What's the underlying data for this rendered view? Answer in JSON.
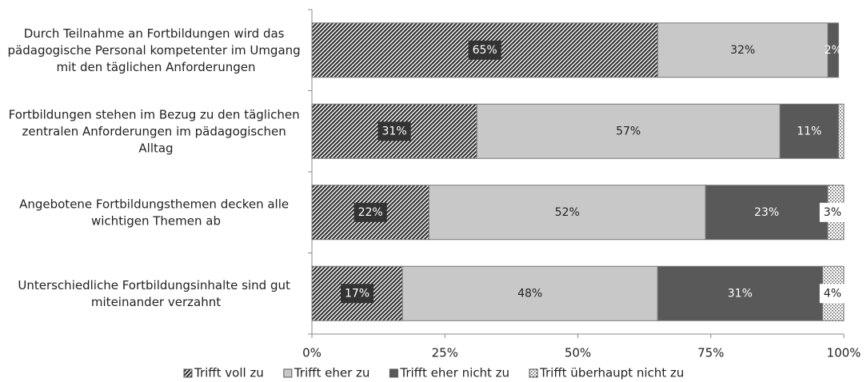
{
  "chart_data": {
    "type": "stacked_barh",
    "categories": [
      "Durch Teilnahme an Fortbildungen wird das pädagogische Personal kompetenter im Umgang mit den täglichen Anforderungen",
      "Fortbildungen stehen im Bezug zu den täglichen zentralen Anforderungen im pädagogischen Alltag",
      "Angebotene Fortbildungsthemen decken alle wichtigen Themen ab",
      "Unterschiedliche Fortbildungsinhalte sind gut miteinander verzahnt"
    ],
    "series": [
      {
        "name": "Trifft voll zu",
        "color": "#333333",
        "pattern": "hatch",
        "values": [
          65,
          31,
          22,
          17
        ],
        "value_labels": [
          "65%",
          "31%",
          "22%",
          "17%"
        ]
      },
      {
        "name": "Trifft eher zu",
        "color": "#c8c8c8",
        "values": [
          32,
          57,
          52,
          48
        ],
        "value_labels": [
          "32%",
          "57%",
          "52%",
          "48%"
        ]
      },
      {
        "name": "Trifft eher nicht zu",
        "color": "#595959",
        "values": [
          2,
          11,
          23,
          31
        ],
        "value_labels": [
          "2%",
          "11%",
          "23%",
          "31%"
        ]
      },
      {
        "name": "Trifft überhaupt nicht zu",
        "color": "#555555",
        "pattern": "dots",
        "values": [
          null,
          1,
          3,
          4
        ],
        "value_labels": [
          null,
          null,
          "3%",
          "4%"
        ]
      }
    ],
    "xlim": [
      0,
      100
    ],
    "xticks": [
      {
        "value": 0,
        "label": "0%"
      },
      {
        "value": 25,
        "label": "25%"
      },
      {
        "value": 50,
        "label": "50%"
      },
      {
        "value": 75,
        "label": "75%"
      },
      {
        "value": 100,
        "label": "100%"
      }
    ],
    "legend": "bottom"
  }
}
